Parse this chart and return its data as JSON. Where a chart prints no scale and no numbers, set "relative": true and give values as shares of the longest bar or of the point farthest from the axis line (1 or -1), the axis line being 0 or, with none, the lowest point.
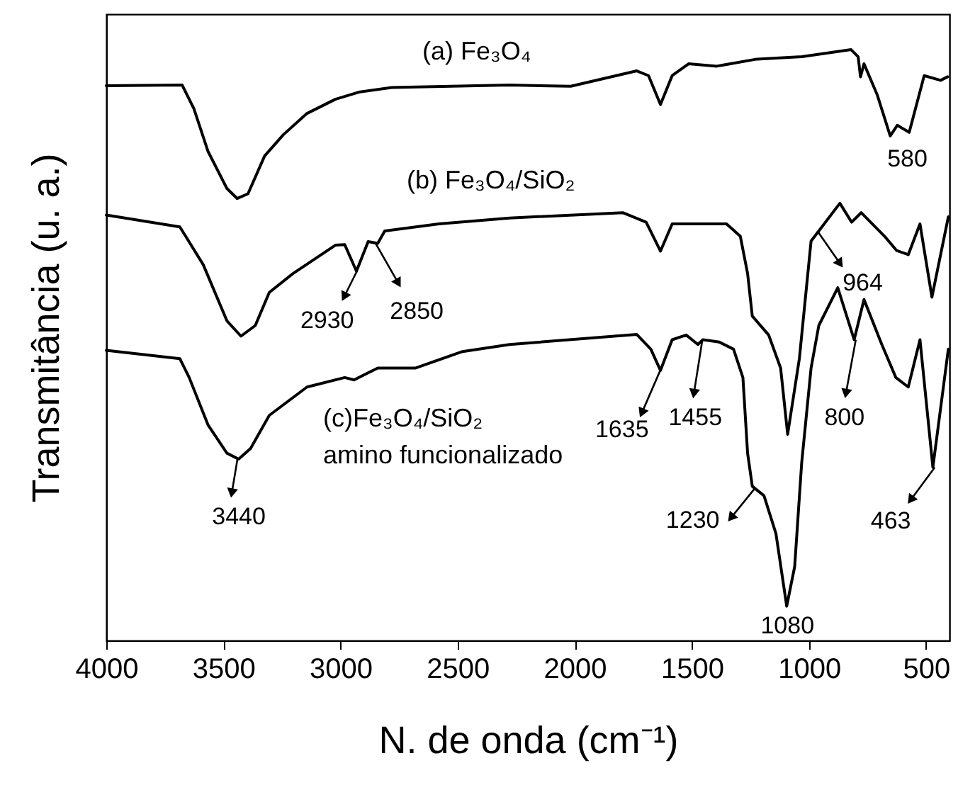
{
  "chart_data": {
    "type": "line",
    "relative": true,
    "xlabel": "N. de onda (cm⁻¹)",
    "ylabel": "Transmitância (u. a.)",
    "xlim": [
      4000,
      400
    ],
    "xticks": [
      4000,
      3500,
      3000,
      2500,
      2000,
      1500,
      1000,
      500
    ],
    "series": [
      {
        "name": "(a) Fe₃O₄",
        "color": "#000000",
        "x": [
          4000,
          3676,
          3626,
          3566,
          3485,
          3441,
          3395,
          3324,
          3244,
          3143,
          3022,
          2922,
          2781,
          2278,
          2017,
          1735,
          1685,
          1634,
          1584,
          1514,
          1393,
          1222,
          1030,
          820,
          790,
          780,
          765,
          709,
          653,
          623,
          572,
          508,
          438,
          408
        ],
        "values": [
          0.939,
          0.94,
          0.9,
          0.828,
          0.765,
          0.748,
          0.756,
          0.82,
          0.856,
          0.892,
          0.916,
          0.928,
          0.936,
          0.94,
          0.938,
          0.964,
          0.956,
          0.907,
          0.956,
          0.976,
          0.972,
          0.984,
          0.988,
          1,
          0.988,
          0.954,
          0.976,
          0.924,
          0.854,
          0.872,
          0.86,
          0.956,
          0.948,
          0.954
        ]
      },
      {
        "name": "(b) Fe₃O₄/SiO₂",
        "color": "#000000",
        "x": [
          4000,
          3686,
          3586,
          3485,
          3425,
          3364,
          3304,
          3203,
          3022,
          2982,
          2932,
          2882,
          2841,
          2811,
          2580,
          2278,
          1795,
          1695,
          1634,
          1584,
          1352,
          1293,
          1262,
          1242,
          1172,
          1121,
          1091,
          1041,
          991,
          958,
          868,
          818,
          777,
          677,
          626,
          576,
          526,
          475,
          405
        ],
        "values": [
          0.72,
          0.7,
          0.636,
          0.541,
          0.515,
          0.533,
          0.589,
          0.621,
          0.669,
          0.67,
          0.625,
          0.675,
          0.672,
          0.693,
          0.705,
          0.715,
          0.724,
          0.708,
          0.659,
          0.705,
          0.705,
          0.684,
          0.621,
          0.549,
          0.517,
          0.461,
          0.349,
          0.477,
          0.676,
          0.693,
          0.74,
          0.708,
          0.724,
          0.684,
          0.66,
          0.653,
          0.705,
          0.581,
          0.717
        ]
      },
      {
        "name": "(c)Fe₃O₄/SiO₂ amino funcionalizado",
        "color": "#000000",
        "x": [
          4000,
          3686,
          3646,
          3566,
          3485,
          3435,
          3384,
          3304,
          3143,
          2982,
          2942,
          2841,
          2681,
          2479,
          2278,
          1735,
          1675,
          1634,
          1584,
          1524,
          1474,
          1453,
          1383,
          1322,
          1282,
          1262,
          1242,
          1192,
          1141,
          1095,
          1061,
          1031,
          991,
          958,
          877,
          807,
          765,
          689,
          629,
          576,
          526,
          471,
          405
        ],
        "values": [
          0.491,
          0.477,
          0.445,
          0.365,
          0.317,
          0.307,
          0.325,
          0.381,
          0.429,
          0.445,
          0.441,
          0.461,
          0.461,
          0.489,
          0.501,
          0.518,
          0.493,
          0.457,
          0.509,
          0.517,
          0.501,
          0.509,
          0.505,
          0.493,
          0.445,
          0.317,
          0.261,
          0.245,
          0.181,
          0.058,
          0.125,
          0.301,
          0.461,
          0.533,
          0.597,
          0.509,
          0.577,
          0.501,
          0.445,
          0.429,
          0.509,
          0.293,
          0.493
        ]
      }
    ],
    "annotations": [
      {
        "text": "580",
        "x": 580,
        "y": 0.86
      },
      {
        "text": "2930",
        "x": 2930,
        "y": 0.625
      },
      {
        "text": "2850",
        "x": 2850,
        "y": 0.672
      },
      {
        "text": "964",
        "x": 964,
        "y": 0.693
      },
      {
        "text": "3440",
        "x": 3440,
        "y": 0.307
      },
      {
        "text": "1635",
        "x": 1635,
        "y": 0.457
      },
      {
        "text": "1455",
        "x": 1455,
        "y": 0.509
      },
      {
        "text": "800",
        "x": 800,
        "y": 0.509
      },
      {
        "text": "1230",
        "x": 1230,
        "y": 0.258
      },
      {
        "text": "463",
        "x": 463,
        "y": 0.293
      },
      {
        "text": "1080",
        "x": 1080,
        "y": 0.058
      }
    ]
  }
}
